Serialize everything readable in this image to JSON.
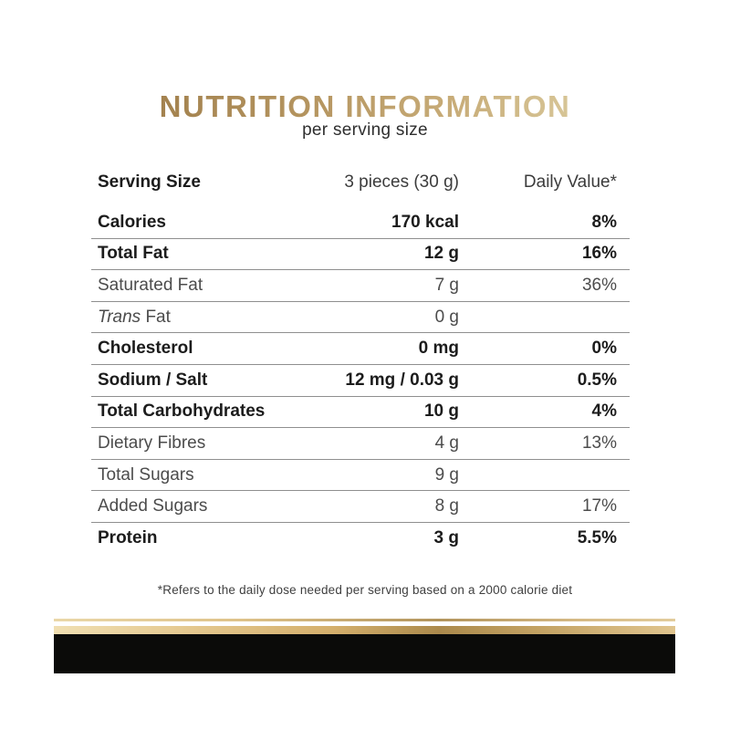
{
  "title": "NUTRITION INFORMATION",
  "subtitle": "per serving size",
  "table": {
    "header": {
      "label": "Serving Size",
      "value": "3 pieces (30 g)",
      "daily": "Daily Value*"
    },
    "rows": [
      {
        "label": "Calories",
        "value": "170 kcal",
        "daily": "8%",
        "bold": true
      },
      {
        "label": "Total Fat",
        "value": "12 g",
        "daily": "16%",
        "bold": true
      },
      {
        "label": "Saturated Fat",
        "value": "7 g",
        "daily": "36%",
        "bold": false
      },
      {
        "label_italic": "Trans",
        "label_rest": " Fat",
        "value": "0 g",
        "daily": "",
        "bold": false
      },
      {
        "label": "Cholesterol",
        "value": "0 mg",
        "daily": "0%",
        "bold": true
      },
      {
        "label": "Sodium / Salt",
        "value": "12 mg / 0.03 g",
        "daily": "0.5%",
        "bold": true
      },
      {
        "label": "Total Carbohydrates",
        "value": "10 g",
        "daily": "4%",
        "bold": true
      },
      {
        "label": "Dietary Fibres",
        "value": "4 g",
        "daily": "13%",
        "bold": false
      },
      {
        "label": "Total Sugars",
        "value": "9 g",
        "daily": "",
        "bold": false
      },
      {
        "label": "Added Sugars",
        "value": "8 g",
        "daily": "17%",
        "bold": false
      },
      {
        "label": "Protein",
        "value": "3 g",
        "daily": "5.5%",
        "bold": true
      }
    ]
  },
  "footnote": "*Refers to the daily dose needed per serving based on a 2000 calorie diet",
  "colors": {
    "title_gold_dark": "#a3824f",
    "title_gold_light": "#d7c596",
    "text_bold": "#1c1c1c",
    "text_regular": "#4c4c4c",
    "rule_gray": "#8f8f8f",
    "deco_gold_dark": "#ab8a4c",
    "deco_gold_light": "#f0dfb2",
    "deco_black": "#0b0b09"
  }
}
